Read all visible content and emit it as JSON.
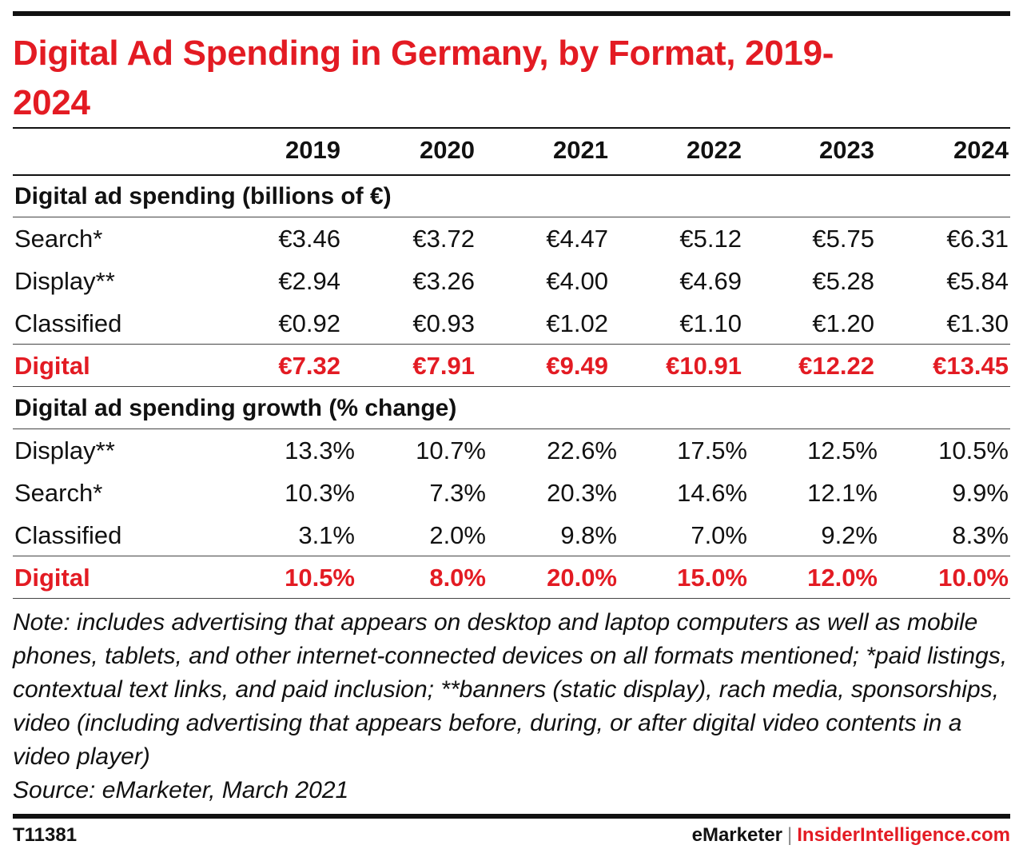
{
  "title": "Digital Ad Spending in Germany, by Format, 2019-2024",
  "chart_data": {
    "type": "table",
    "title": "Digital Ad Spending in Germany, by Format, 2019-2024",
    "columns": [
      "2019",
      "2020",
      "2021",
      "2022",
      "2023",
      "2024"
    ],
    "sections": [
      {
        "heading": "Digital ad spending (billions of €)",
        "rows": [
          {
            "label": "Search*",
            "values": [
              "€3.46",
              "€3.72",
              "€4.47",
              "€5.12",
              "€5.75",
              "€6.31"
            ],
            "total": false
          },
          {
            "label": "Display**",
            "values": [
              "€2.94",
              "€3.26",
              "€4.00",
              "€4.69",
              "€5.28",
              "€5.84"
            ],
            "total": false
          },
          {
            "label": "Classified",
            "values": [
              "€0.92",
              "€0.93",
              "€1.02",
              "€1.10",
              "€1.20",
              "€1.30"
            ],
            "total": false
          },
          {
            "label": "Digital",
            "values": [
              "€7.32",
              "€7.91",
              "€9.49",
              "€10.91",
              "€12.22",
              "€13.45"
            ],
            "total": true
          }
        ]
      },
      {
        "heading": "Digital ad spending growth (% change)",
        "rows": [
          {
            "label": "Display**",
            "values": [
              "13.3%",
              "10.7%",
              "22.6%",
              "17.5%",
              "12.5%",
              "10.5%"
            ],
            "total": false
          },
          {
            "label": "Search*",
            "values": [
              "10.3%",
              "7.3%",
              "20.3%",
              "14.6%",
              "12.1%",
              "9.9%"
            ],
            "total": false
          },
          {
            "label": "Classified",
            "values": [
              "3.1%",
              "2.0%",
              "9.8%",
              "7.0%",
              "9.2%",
              "8.3%"
            ],
            "total": false
          },
          {
            "label": "Digital",
            "values": [
              "10.5%",
              "8.0%",
              "20.0%",
              "15.0%",
              "12.0%",
              "10.0%"
            ],
            "total": true
          }
        ]
      }
    ]
  },
  "note": "Note: includes advertising that appears on desktop and laptop computers as well as mobile phones, tablets, and other internet-connected devices on all formats mentioned; *paid listings, contextual text links, and paid inclusion; **banners (static display), rach media, sponsorships, video (including advertising that appears before, during, or after digital video contents in a video player)",
  "source": "Source: eMarketer, March 2021",
  "footer": {
    "chart_id": "T11381",
    "brand": "eMarketer",
    "separator": "|",
    "brand_site": "InsiderIntelligence.com"
  },
  "colors": {
    "accent": "#e31b23",
    "text": "#111111"
  }
}
